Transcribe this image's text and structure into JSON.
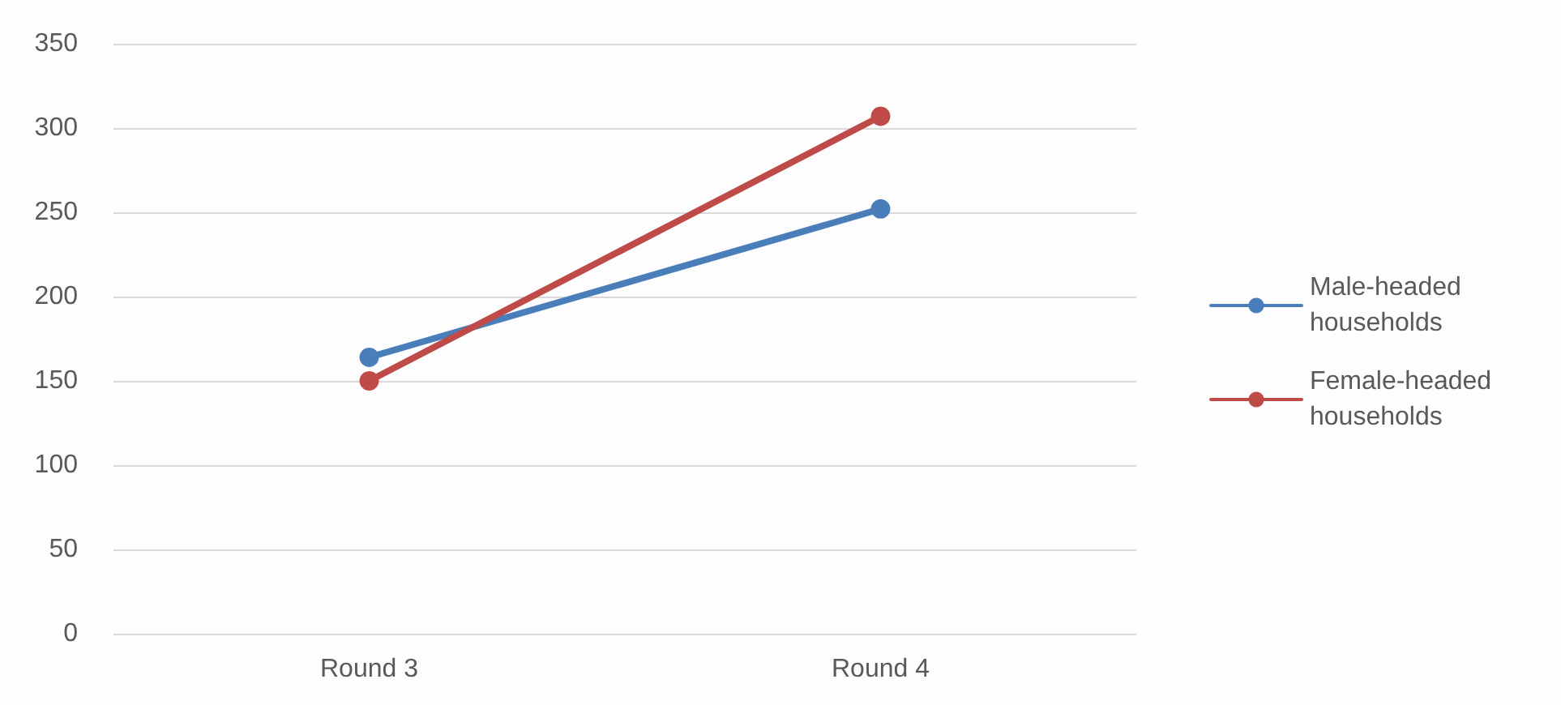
{
  "chart_data": {
    "type": "line",
    "categories": [
      "Round 3",
      "Round 4"
    ],
    "series": [
      {
        "name": "Male-headed households",
        "color": "#4a7ebb",
        "values": [
          164,
          252
        ]
      },
      {
        "name": "Female-headed households",
        "color": "#be4b48",
        "values": [
          150,
          307
        ]
      }
    ],
    "ylim": [
      0,
      350
    ],
    "yticks": [
      0,
      50,
      100,
      150,
      200,
      250,
      300,
      350
    ],
    "grid": "y",
    "legend": "right",
    "marker": "circle",
    "line_style": "solid"
  }
}
